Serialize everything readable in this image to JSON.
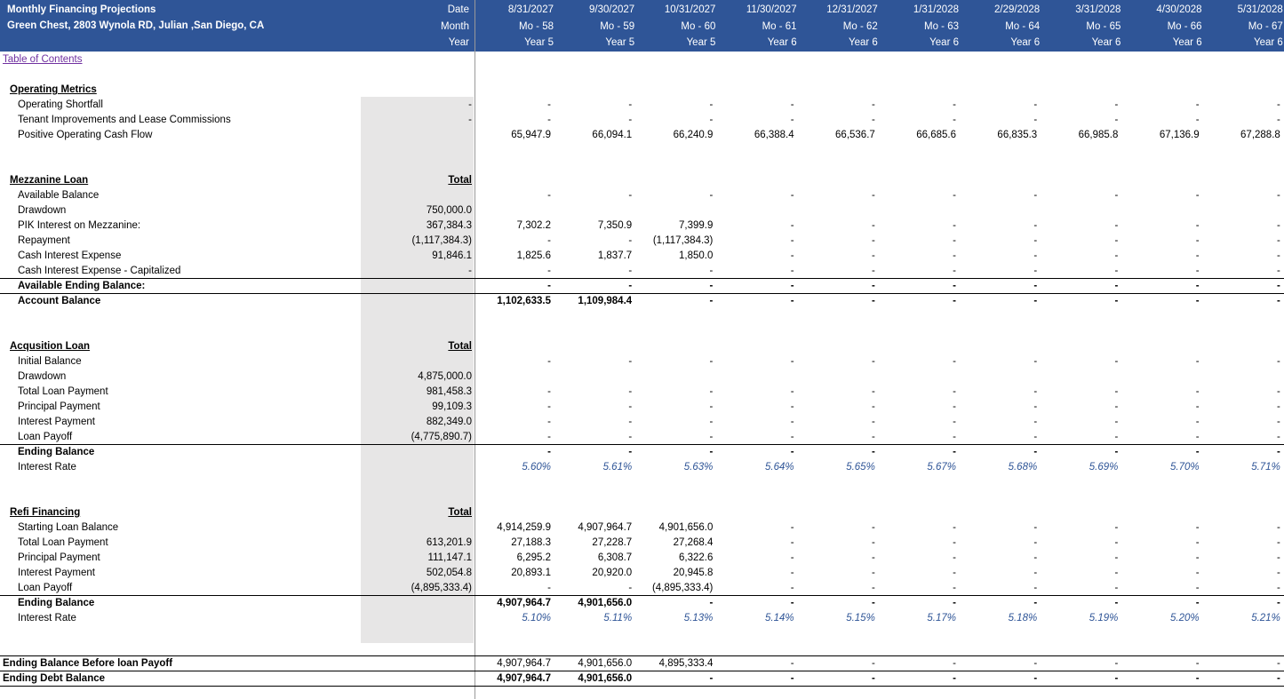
{
  "header": {
    "title": "Monthly Financing Projections",
    "subtitle": "Green Chest, 2803 Wynola RD, Julian ,San Diego, CA",
    "row_labels": [
      "Date",
      "Month",
      "Year"
    ],
    "columns": [
      {
        "date": "8/31/2027",
        "month": "Mo - 58",
        "year": "Year 5"
      },
      {
        "date": "9/30/2027",
        "month": "Mo - 59",
        "year": "Year 5"
      },
      {
        "date": "10/31/2027",
        "month": "Mo - 60",
        "year": "Year 5"
      },
      {
        "date": "11/30/2027",
        "month": "Mo - 61",
        "year": "Year 6"
      },
      {
        "date": "12/31/2027",
        "month": "Mo - 62",
        "year": "Year 6"
      },
      {
        "date": "1/31/2028",
        "month": "Mo - 63",
        "year": "Year 6"
      },
      {
        "date": "2/29/2028",
        "month": "Mo - 64",
        "year": "Year 6"
      },
      {
        "date": "3/31/2028",
        "month": "Mo - 65",
        "year": "Year 6"
      },
      {
        "date": "4/30/2028",
        "month": "Mo - 66",
        "year": "Year 6"
      },
      {
        "date": "5/31/2028",
        "month": "Mo - 67",
        "year": "Year 6"
      }
    ]
  },
  "toc_link": "Table of Contents",
  "sections": [
    {
      "title": "Operating Metrics",
      "rows": [
        {
          "label": "Operating Shortfall",
          "total": "-",
          "values": [
            "-",
            "-",
            "-",
            "-",
            "-",
            "-",
            "-",
            "-",
            "-",
            "-"
          ]
        },
        {
          "label": "Tenant Improvements and Lease Commissions",
          "total": "-",
          "values": [
            "-",
            "-",
            "-",
            "-",
            "-",
            "-",
            "-",
            "-",
            "-",
            "-"
          ]
        },
        {
          "label": "Positive Operating Cash Flow",
          "values": [
            "65,947.9",
            "66,094.1",
            "66,240.9",
            "66,388.4",
            "66,536.7",
            "66,685.6",
            "66,835.3",
            "66,985.8",
            "67,136.9",
            "67,288.8"
          ]
        }
      ]
    },
    {
      "title": "Mezzanine Loan",
      "total_header": "Total",
      "rows": [
        {
          "label": "Available Balance",
          "values": [
            "-",
            "-",
            "-",
            "-",
            "-",
            "-",
            "-",
            "-",
            "-",
            "-"
          ]
        },
        {
          "label": "Drawdown",
          "total": "750,000.0",
          "values": [
            null,
            null,
            null,
            null,
            null,
            null,
            null,
            null,
            null,
            null
          ]
        },
        {
          "label": "PIK Interest on Mezzanine:",
          "total": "367,384.3",
          "values": [
            "7,302.2",
            "7,350.9",
            "7,399.9",
            "-",
            "-",
            "-",
            "-",
            "-",
            "-",
            "-"
          ]
        },
        {
          "label": "Repayment",
          "total": "(1,117,384.3)",
          "values": [
            "-",
            "-",
            "(1,117,384.3)",
            "-",
            "-",
            "-",
            "-",
            "-",
            "-",
            "-"
          ]
        },
        {
          "label": "Cash Interest Expense",
          "total": "91,846.1",
          "values": [
            "1,825.6",
            "1,837.7",
            "1,850.0",
            "-",
            "-",
            "-",
            "-",
            "-",
            "-",
            "-"
          ]
        },
        {
          "label": "Cash Interest Expense - Capitalized",
          "total": "-",
          "values": [
            "-",
            "-",
            "-",
            "-",
            "-",
            "-",
            "-",
            "-",
            "-",
            "-"
          ]
        }
      ],
      "summary": [
        {
          "label": "Available Ending Balance:",
          "values": [
            "-",
            "-",
            "-",
            "-",
            "-",
            "-",
            "-",
            "-",
            "-",
            "-"
          ]
        },
        {
          "label": "Account Balance",
          "values": [
            "1,102,633.5",
            "1,109,984.4",
            "-",
            "-",
            "-",
            "-",
            "-",
            "-",
            "-",
            "-"
          ]
        }
      ]
    },
    {
      "title": "Acqusition Loan",
      "total_header": "Total",
      "rows": [
        {
          "label": "Initial Balance",
          "values": [
            "-",
            "-",
            "-",
            "-",
            "-",
            "-",
            "-",
            "-",
            "-",
            "-"
          ]
        },
        {
          "label": "Drawdown",
          "total": "4,875,000.0",
          "values": [
            null,
            null,
            null,
            null,
            null,
            null,
            null,
            null,
            null,
            null
          ]
        },
        {
          "label": "Total Loan Payment",
          "total": "981,458.3",
          "values": [
            "-",
            "-",
            "-",
            "-",
            "-",
            "-",
            "-",
            "-",
            "-",
            "-"
          ]
        },
        {
          "label": "Principal Payment",
          "total": "99,109.3",
          "values": [
            "-",
            "-",
            "-",
            "-",
            "-",
            "-",
            "-",
            "-",
            "-",
            "-"
          ]
        },
        {
          "label": "Interest Payment",
          "total": "882,349.0",
          "values": [
            "-",
            "-",
            "-",
            "-",
            "-",
            "-",
            "-",
            "-",
            "-",
            "-"
          ]
        },
        {
          "label": "Loan Payoff",
          "total": "(4,775,890.7)",
          "values": [
            "-",
            "-",
            "-",
            "-",
            "-",
            "-",
            "-",
            "-",
            "-",
            "-"
          ]
        }
      ],
      "summary": [
        {
          "label": "Ending Balance",
          "values": [
            "-",
            "-",
            "-",
            "-",
            "-",
            "-",
            "-",
            "-",
            "-",
            "-"
          ]
        }
      ],
      "rates": {
        "label": "Interest Rate",
        "values": [
          "5.60%",
          "5.61%",
          "5.63%",
          "5.64%",
          "5.65%",
          "5.67%",
          "5.68%",
          "5.69%",
          "5.70%",
          "5.71%"
        ]
      }
    },
    {
      "title": "Refi Financing",
      "total_header": "Total",
      "rows": [
        {
          "label": "Starting Loan Balance",
          "values": [
            "4,914,259.9",
            "4,907,964.7",
            "4,901,656.0",
            "-",
            "-",
            "-",
            "-",
            "-",
            "-",
            "-"
          ]
        },
        {
          "label": "Total Loan Payment",
          "total": "613,201.9",
          "values": [
            "27,188.3",
            "27,228.7",
            "27,268.4",
            "-",
            "-",
            "-",
            "-",
            "-",
            "-",
            "-"
          ]
        },
        {
          "label": "Principal Payment",
          "total": "111,147.1",
          "values": [
            "6,295.2",
            "6,308.7",
            "6,322.6",
            "-",
            "-",
            "-",
            "-",
            "-",
            "-",
            "-"
          ]
        },
        {
          "label": "Interest Payment",
          "total": "502,054.8",
          "values": [
            "20,893.1",
            "20,920.0",
            "20,945.8",
            "-",
            "-",
            "-",
            "-",
            "-",
            "-",
            "-"
          ]
        },
        {
          "label": "Loan Payoff",
          "total": "(4,895,333.4)",
          "values": [
            "-",
            "-",
            "(4,895,333.4)",
            "-",
            "-",
            "-",
            "-",
            "-",
            "-",
            "-"
          ]
        }
      ],
      "summary": [
        {
          "label": "Ending Balance",
          "values": [
            "4,907,964.7",
            "4,901,656.0",
            "-",
            "-",
            "-",
            "-",
            "-",
            "-",
            "-",
            "-"
          ]
        }
      ],
      "rates": {
        "label": "Interest Rate",
        "values": [
          "5.10%",
          "5.11%",
          "5.13%",
          "5.14%",
          "5.15%",
          "5.17%",
          "5.18%",
          "5.19%",
          "5.20%",
          "5.21%"
        ]
      }
    }
  ],
  "footer_rows": [
    {
      "label": "Ending Balance Before loan Payoff",
      "values": [
        "4,907,964.7",
        "4,901,656.0",
        "4,895,333.4",
        "-",
        "-",
        "-",
        "-",
        "-",
        "-",
        "-"
      ]
    },
    {
      "label": "Ending Debt Balance",
      "values": [
        "4,907,964.7",
        "4,901,656.0",
        "-",
        "-",
        "-",
        "-",
        "-",
        "-",
        "-",
        "-"
      ]
    }
  ]
}
